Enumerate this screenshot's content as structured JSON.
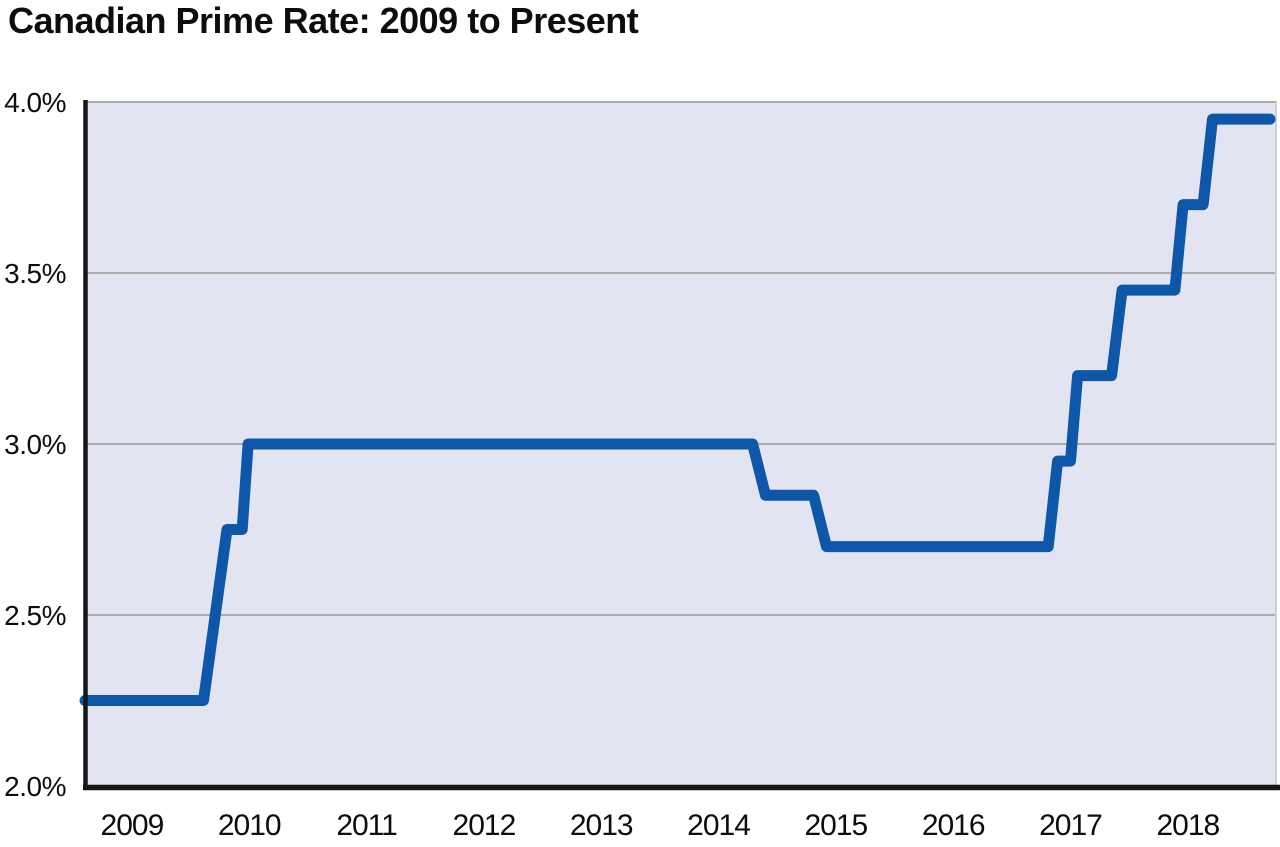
{
  "title": "Canadian Prime Rate: 2009 to Present",
  "colors": {
    "line": "#0e57a8",
    "plot_background": "#e2e4f1",
    "gridline": "#ababab",
    "axis": "#161616",
    "right_border": "#cfcfd4",
    "text": "#0d0d0d"
  },
  "chart_data": {
    "type": "line",
    "title": "Canadian Prime Rate: 2009 to Present",
    "xlabel": "",
    "ylabel": "",
    "legend": "none",
    "grid": "horizontal gridlines every 0.5%",
    "xlim": [
      2009.1,
      2019.26
    ],
    "ylim": [
      2.0,
      4.0
    ],
    "x_tick_labels": [
      "2009",
      "2010",
      "2011",
      "2012",
      "2013",
      "2014",
      "2015",
      "2016",
      "2017",
      "2018"
    ],
    "y_ticks": [
      {
        "label": "4.0%",
        "value": 4.0
      },
      {
        "label": "3.5%",
        "value": 3.5
      },
      {
        "label": "3.0%",
        "value": 3.0
      },
      {
        "label": "2.5%",
        "value": 2.5
      },
      {
        "label": "2.0%",
        "value": 2.0
      }
    ],
    "series": [
      {
        "name": "Canadian prime rate (%)",
        "step_levels": [
          2.25,
          2.75,
          3.0,
          2.85,
          2.7,
          2.95,
          3.2,
          3.45,
          3.7,
          3.95
        ],
        "points": [
          [
            2009.1,
            2.25
          ],
          [
            2010.11,
            2.25
          ],
          [
            2010.31,
            2.75
          ],
          [
            2010.44,
            2.75
          ],
          [
            2010.49,
            3.0
          ],
          [
            2014.79,
            3.0
          ],
          [
            2014.9,
            2.85
          ],
          [
            2015.31,
            2.85
          ],
          [
            2015.42,
            2.7
          ],
          [
            2017.31,
            2.7
          ],
          [
            2017.39,
            2.95
          ],
          [
            2017.5,
            2.95
          ],
          [
            2017.56,
            3.2
          ],
          [
            2017.85,
            3.2
          ],
          [
            2017.94,
            3.45
          ],
          [
            2018.39,
            3.45
          ],
          [
            2018.46,
            3.7
          ],
          [
            2018.63,
            3.7
          ],
          [
            2018.71,
            3.95
          ],
          [
            2019.2,
            3.95
          ]
        ]
      }
    ]
  }
}
